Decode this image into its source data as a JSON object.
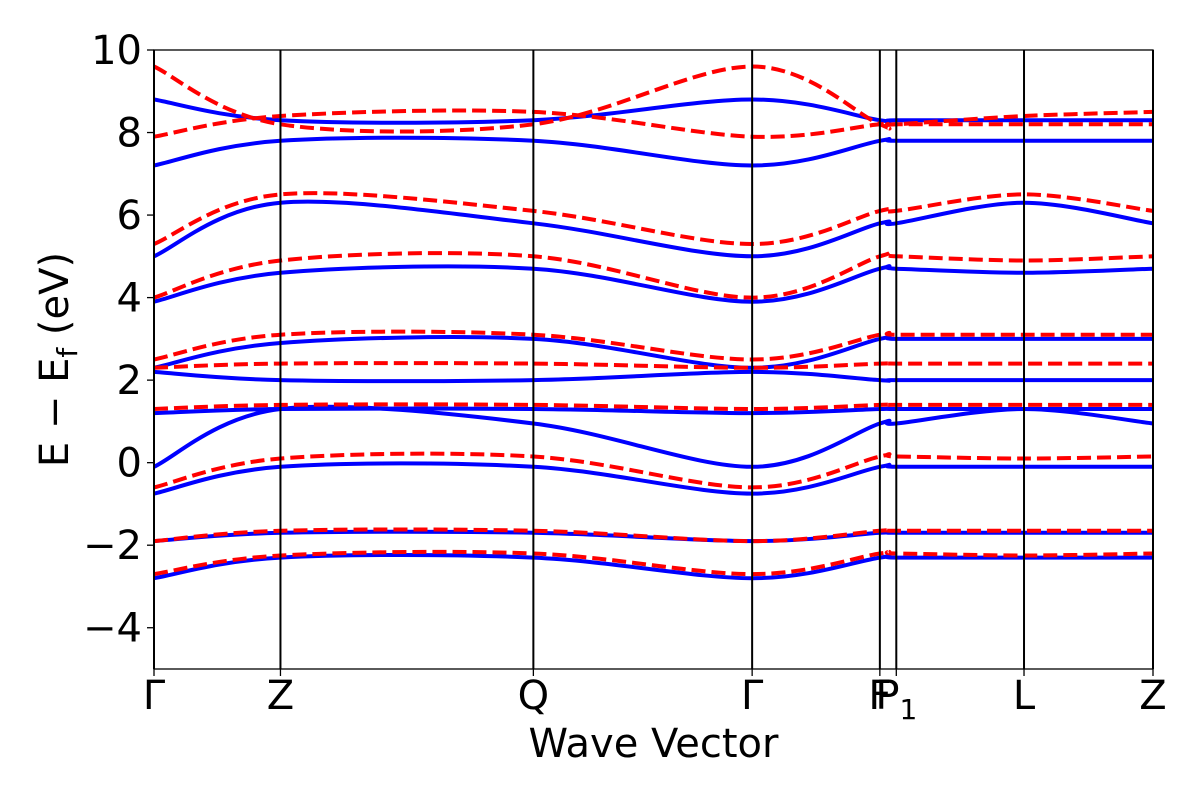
{
  "chart_data": {
    "type": "line",
    "xlabel": "Wave Vector",
    "ylabel_main": "E − E",
    "ylabel_sub": "f",
    "ylabel_unit": "(eV)",
    "ylim": [
      -5,
      10
    ],
    "yticks": [
      -4,
      -2,
      0,
      2,
      4,
      6,
      8,
      10
    ],
    "ytick_labels": [
      "−4",
      "−2",
      "0",
      "2",
      "4",
      "6",
      "8",
      "10"
    ],
    "xlim": [
      0,
      7.9
    ],
    "kpoints": [
      {
        "label": "Γ",
        "sub": "",
        "x": 0
      },
      {
        "label": "Z",
        "sub": "",
        "x": 1.0
      },
      {
        "label": "Q",
        "sub": "",
        "x": 3.0
      },
      {
        "label": "Γ",
        "sub": "",
        "x": 4.73
      },
      {
        "label": "F",
        "sub": "",
        "x": 5.74
      },
      {
        "label": "P",
        "sub": "1",
        "x": 5.87
      },
      {
        "label": "L",
        "sub": "",
        "x": 6.88
      },
      {
        "label": "Z",
        "sub": "",
        "x": 7.9
      }
    ],
    "grid": false,
    "series_styles": [
      {
        "color": "#0000ff",
        "dash": "solid"
      },
      {
        "color": "#ff0000",
        "dash": "dashed"
      }
    ],
    "series": [
      {
        "style": 0,
        "bands": [
          {
            "x": [
              0,
              1.0,
              3.0,
              4.73,
              5.74,
              5.87,
              6.88,
              7.9
            ],
            "y": [
              -2.8,
              -2.3,
              -2.3,
              -2.8,
              -2.3,
              -2.3,
              -2.3,
              -2.3
            ]
          },
          {
            "x": [
              0,
              1.0,
              3.0,
              4.73,
              5.74,
              5.87,
              6.88,
              7.9
            ],
            "y": [
              -1.9,
              -1.7,
              -1.7,
              -1.9,
              -1.7,
              -1.7,
              -1.7,
              -1.7
            ]
          },
          {
            "x": [
              0,
              1.0,
              3.0,
              4.73,
              5.74,
              5.87,
              6.88,
              7.9
            ],
            "y": [
              -0.75,
              -0.1,
              -0.1,
              -0.75,
              -0.1,
              -0.1,
              -0.1,
              -0.1
            ]
          },
          {
            "x": [
              0,
              1.0,
              3.0,
              4.73,
              5.74,
              5.87,
              6.88,
              7.9
            ],
            "y": [
              -0.1,
              1.3,
              0.95,
              -0.1,
              0.95,
              0.95,
              1.3,
              0.95
            ]
          },
          {
            "x": [
              0,
              1.0,
              3.0,
              4.73,
              5.74,
              5.87,
              6.88,
              7.9
            ],
            "y": [
              1.2,
              1.3,
              1.3,
              1.2,
              1.3,
              1.3,
              1.3,
              1.3
            ]
          },
          {
            "x": [
              0,
              1.0,
              3.0,
              4.73,
              5.74,
              5.87,
              6.88,
              7.9
            ],
            "y": [
              2.2,
              2.0,
              2.0,
              2.2,
              2.0,
              2.0,
              2.0,
              2.0
            ]
          },
          {
            "x": [
              0,
              1.0,
              3.0,
              4.73,
              5.74,
              5.87,
              6.88,
              7.9
            ],
            "y": [
              2.3,
              2.9,
              3.0,
              2.3,
              3.0,
              3.0,
              3.0,
              3.0
            ]
          },
          {
            "x": [
              0,
              1.0,
              3.0,
              4.73,
              5.74,
              5.87,
              6.88,
              7.9
            ],
            "y": [
              3.9,
              4.6,
              4.7,
              3.9,
              4.7,
              4.7,
              4.6,
              4.7
            ]
          },
          {
            "x": [
              0,
              1.0,
              3.0,
              4.73,
              5.74,
              5.87,
              6.88,
              7.9
            ],
            "y": [
              5.0,
              6.3,
              5.8,
              5.0,
              5.8,
              5.8,
              6.3,
              5.8
            ]
          },
          {
            "x": [
              0,
              1.0,
              3.0,
              4.73,
              5.74,
              5.87,
              6.88,
              7.9
            ],
            "y": [
              7.2,
              7.8,
              7.8,
              7.2,
              7.8,
              7.8,
              7.8,
              7.8
            ]
          },
          {
            "x": [
              0,
              1.0,
              3.0,
              4.73,
              5.74,
              5.87,
              6.88,
              7.9
            ],
            "y": [
              8.8,
              8.3,
              8.3,
              8.8,
              8.3,
              8.3,
              8.3,
              8.3
            ]
          }
        ]
      },
      {
        "style": 1,
        "bands": [
          {
            "x": [
              0,
              1.0,
              3.0,
              4.73,
              5.74,
              5.87,
              6.88,
              7.9
            ],
            "y": [
              -2.7,
              -2.25,
              -2.2,
              -2.7,
              -2.2,
              -2.2,
              -2.25,
              -2.2
            ]
          },
          {
            "x": [
              0,
              1.0,
              3.0,
              4.73,
              5.74,
              5.87,
              6.88,
              7.9
            ],
            "y": [
              -1.9,
              -1.65,
              -1.65,
              -1.9,
              -1.65,
              -1.65,
              -1.65,
              -1.65
            ]
          },
          {
            "x": [
              0,
              1.0,
              3.0,
              4.73,
              5.74,
              5.87,
              6.88,
              7.9
            ],
            "y": [
              -0.6,
              0.1,
              0.15,
              -0.6,
              0.15,
              0.15,
              0.1,
              0.15
            ]
          },
          {
            "x": [
              0,
              1.0,
              3.0,
              4.73,
              5.74,
              5.87,
              6.88,
              7.9
            ],
            "y": [
              1.3,
              1.4,
              1.4,
              1.3,
              1.4,
              1.4,
              1.4,
              1.4
            ]
          },
          {
            "x": [
              0,
              1.0,
              3.0,
              4.73,
              5.74,
              5.87,
              6.88,
              7.9
            ],
            "y": [
              2.3,
              2.4,
              2.4,
              2.3,
              2.4,
              2.4,
              2.4,
              2.4
            ]
          },
          {
            "x": [
              0,
              1.0,
              3.0,
              4.73,
              5.74,
              5.87,
              6.88,
              7.9
            ],
            "y": [
              2.5,
              3.1,
              3.1,
              2.5,
              3.1,
              3.1,
              3.1,
              3.1
            ]
          },
          {
            "x": [
              0,
              1.0,
              3.0,
              4.73,
              5.74,
              5.87,
              6.88,
              7.9
            ],
            "y": [
              4.0,
              4.9,
              5.0,
              4.0,
              5.0,
              5.0,
              4.9,
              5.0
            ]
          },
          {
            "x": [
              0,
              1.0,
              3.0,
              4.73,
              5.74,
              5.87,
              6.88,
              7.9
            ],
            "y": [
              5.3,
              6.5,
              6.1,
              5.3,
              6.1,
              6.1,
              6.5,
              6.1
            ]
          },
          {
            "x": [
              0,
              1.0,
              3.0,
              4.73,
              5.74,
              5.87,
              6.88,
              7.9
            ],
            "y": [
              7.9,
              8.4,
              8.5,
              7.9,
              8.2,
              8.2,
              8.4,
              8.5
            ]
          },
          {
            "x": [
              0,
              1.0,
              3.0,
              4.73,
              5.74,
              5.87,
              6.88,
              7.9
            ],
            "y": [
              9.6,
              8.2,
              8.2,
              9.6,
              8.2,
              8.2,
              8.2,
              8.2
            ]
          }
        ]
      }
    ]
  }
}
